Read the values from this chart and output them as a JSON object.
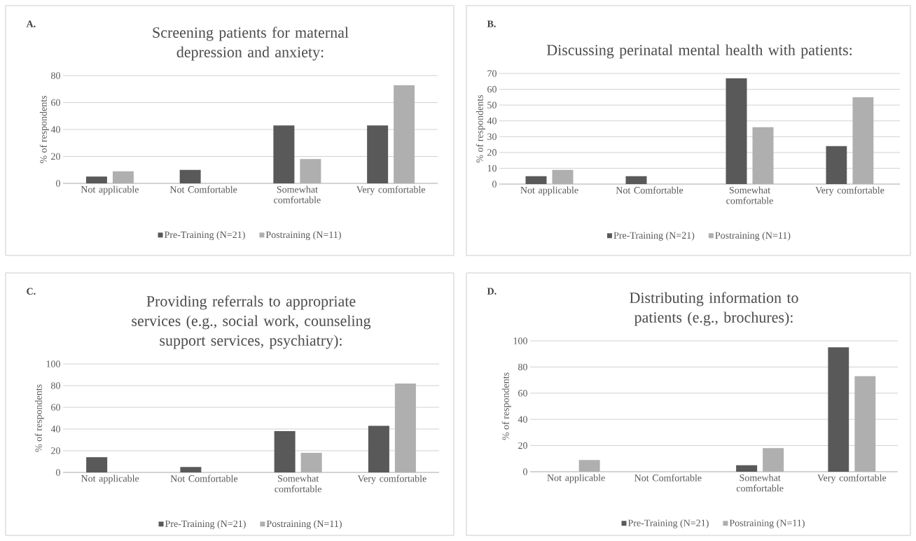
{
  "chart_data": [
    {
      "type": "bar",
      "title": "Screening patients for maternal depression and anxiety:",
      "annotations": [
        "A."
      ],
      "categories": [
        "Not applicable",
        "Not Comfortable",
        "Somewhat comfortable",
        "Very comfortable"
      ],
      "ylabel": "% of respondents",
      "ylim": [
        0,
        80
      ],
      "yticks": [
        0,
        20,
        40,
        60,
        80
      ],
      "grid": "y",
      "legend": "bottom",
      "series": [
        {
          "name": "Pre-Training (N=21)",
          "color": "#595959",
          "values": [
            5,
            10,
            43,
            43
          ]
        },
        {
          "name": "Postraining (N=11)",
          "color": "#afafaf",
          "values": [
            9,
            0,
            18,
            73
          ]
        }
      ]
    },
    {
      "type": "bar",
      "title": "Discussing perinatal mental health with patients:",
      "annotations": [
        "B."
      ],
      "categories": [
        "Not applicable",
        "Not Comfortable",
        "Somewhat comfortable",
        "Very comfortable"
      ],
      "ylabel": "% of respondents",
      "ylim": [
        0,
        70
      ],
      "yticks": [
        0,
        10,
        20,
        30,
        40,
        50,
        60,
        70
      ],
      "grid": "y",
      "legend": "bottom",
      "series": [
        {
          "name": "Pre-Training (N=21)",
          "color": "#595959",
          "values": [
            5,
            5,
            67,
            24
          ]
        },
        {
          "name": "Postraining (N=11)",
          "color": "#afafaf",
          "values": [
            9,
            0,
            36,
            55
          ]
        }
      ]
    },
    {
      "type": "bar",
      "title": "Providing referrals to appropriate services (e.g., social work, counseling support services, psychiatry):",
      "annotations": [
        "C."
      ],
      "categories": [
        "Not applicable",
        "Not Comfortable",
        "Somewhat comfortable",
        "Very comfortable"
      ],
      "ylabel": "% of respondents",
      "ylim": [
        0,
        100
      ],
      "yticks": [
        0,
        20,
        40,
        60,
        80,
        100
      ],
      "grid": "y",
      "legend": "bottom",
      "series": [
        {
          "name": "Pre-Training (N=21)",
          "color": "#595959",
          "values": [
            14,
            5,
            38,
            43
          ]
        },
        {
          "name": "Postraining (N=11)",
          "color": "#afafaf",
          "values": [
            0,
            0,
            18,
            82
          ]
        }
      ]
    },
    {
      "type": "bar",
      "title": "Distributing information to patients (e.g., brochures):",
      "annotations": [
        "D."
      ],
      "categories": [
        "Not applicable",
        "Not Comfortable",
        "Somewhat comfortable",
        "Very comfortable"
      ],
      "ylabel": "% of respondents",
      "ylim": [
        0,
        100
      ],
      "yticks": [
        0,
        20,
        40,
        60,
        80,
        100
      ],
      "grid": "y",
      "legend": "bottom",
      "series": [
        {
          "name": "Pre-Training (N=21)",
          "color": "#595959",
          "values": [
            0,
            0,
            5,
            95
          ]
        },
        {
          "name": "Postraining (N=11)",
          "color": "#afafaf",
          "values": [
            9,
            0,
            18,
            73
          ]
        }
      ]
    }
  ]
}
